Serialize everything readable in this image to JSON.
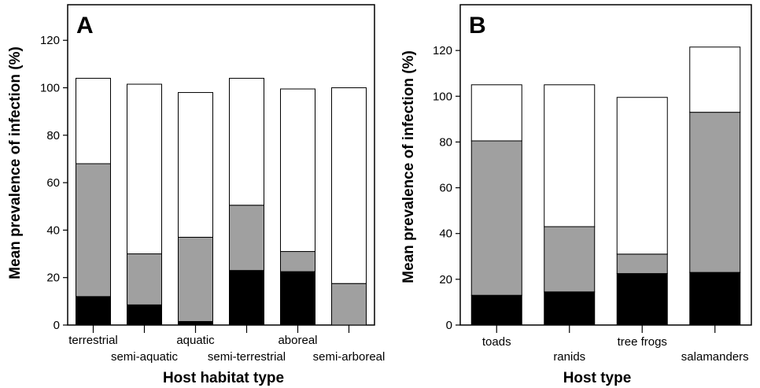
{
  "chart_data": [
    {
      "type": "bar",
      "stacked": true,
      "panel_label": "A",
      "xlabel": "Host habitat type",
      "ylabel": "Mean prevalence of infection (%)",
      "ylim": [
        0,
        135
      ],
      "yticks": [
        "0",
        "20",
        "40",
        "60",
        "80",
        "100",
        "120"
      ],
      "categories": [
        "terrestrial",
        "semi-aquatic",
        "aquatic",
        "semi-terrestrial",
        "aboreal",
        "semi-arboreal"
      ],
      "series": [
        {
          "color": "#000000",
          "values": [
            12,
            8.5,
            1.5,
            23,
            22.5,
            0
          ]
        },
        {
          "color": "#a0a0a0",
          "values": [
            56,
            21.5,
            35.5,
            27.5,
            8.5,
            17.5
          ]
        },
        {
          "color": "#ffffff",
          "values": [
            36,
            71.5,
            61,
            53.5,
            68.5,
            82.5
          ]
        }
      ]
    },
    {
      "type": "bar",
      "stacked": true,
      "panel_label": "B",
      "xlabel": "Host type",
      "ylabel": "Mean prevalence of infection (%)",
      "ylim": [
        0,
        140
      ],
      "yticks": [
        "0",
        "20",
        "40",
        "60",
        "80",
        "100",
        "120"
      ],
      "categories": [
        "toads",
        "ranids",
        "tree frogs",
        "salamanders"
      ],
      "series": [
        {
          "color": "#000000",
          "values": [
            13,
            14.5,
            22.5,
            23
          ]
        },
        {
          "color": "#a0a0a0",
          "values": [
            67.5,
            28.5,
            8.5,
            70
          ]
        },
        {
          "color": "#ffffff",
          "values": [
            24.5,
            62,
            68.5,
            28.5
          ]
        }
      ]
    }
  ]
}
